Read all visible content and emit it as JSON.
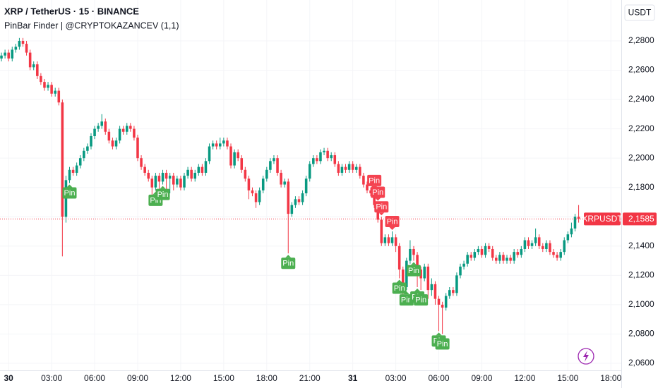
{
  "chart_data": {
    "type": "candlestick",
    "title": "XRP / TetherUS · 15 · BINANCE",
    "subtitle": "PinBar Finder | @CRYPTOKAZANCEV (1,1)",
    "currency": "USDT",
    "symbol_label": "XRPUSDT",
    "last_price": {
      "value": 2.1585,
      "label": "2,1585"
    },
    "up_color": "#089981",
    "down_color": "#f23645",
    "grid": true,
    "ylim": [
      2.0552,
      2.3079
    ],
    "yticks": [
      {
        "value": 2.28,
        "label": "2,2800"
      },
      {
        "value": 2.26,
        "label": "2,2600"
      },
      {
        "value": 2.24,
        "label": "2,2400"
      },
      {
        "value": 2.22,
        "label": "2,2200"
      },
      {
        "value": 2.2,
        "label": "2,2000"
      },
      {
        "value": 2.18,
        "label": "2,1800"
      },
      {
        "value": 2.16,
        "label": "2,1600"
      },
      {
        "value": 2.14,
        "label": "2,1400"
      },
      {
        "value": 2.12,
        "label": "2,1200"
      },
      {
        "value": 2.1,
        "label": "2,1000"
      },
      {
        "value": 2.08,
        "label": "2,0800"
      },
      {
        "value": 2.06,
        "label": "2,0600"
      }
    ],
    "xlim": [
      -0.4,
      172.9
    ],
    "xticks": [
      {
        "value": 2,
        "label": "30",
        "bold": true
      },
      {
        "value": 14,
        "label": "03:00"
      },
      {
        "value": 26,
        "label": "06:00"
      },
      {
        "value": 38,
        "label": "09:00"
      },
      {
        "value": 50,
        "label": "12:00"
      },
      {
        "value": 62,
        "label": "15:00"
      },
      {
        "value": 74,
        "label": "18:00"
      },
      {
        "value": 86,
        "label": "21:00"
      },
      {
        "value": 98,
        "label": "31",
        "bold": true
      },
      {
        "value": 110,
        "label": "03:00"
      },
      {
        "value": 122,
        "label": "06:00"
      },
      {
        "value": 134,
        "label": "09:00"
      },
      {
        "value": 146,
        "label": "12:00"
      },
      {
        "value": 158,
        "label": "15:00"
      },
      {
        "value": 170,
        "label": "18:00"
      }
    ],
    "candles": [
      [
        2.268,
        2.272,
        2.266,
        2.27
      ],
      [
        2.27,
        2.274,
        2.268,
        2.272
      ],
      [
        2.272,
        2.274,
        2.266,
        2.268
      ],
      [
        2.268,
        2.276,
        2.266,
        2.274
      ],
      [
        2.274,
        2.278,
        2.272,
        2.276
      ],
      [
        2.276,
        2.282,
        2.274,
        2.28
      ],
      [
        2.28,
        2.282,
        2.276,
        2.278
      ],
      [
        2.278,
        2.28,
        2.27,
        2.272
      ],
      [
        2.272,
        2.274,
        2.26,
        2.262
      ],
      [
        2.262,
        2.266,
        2.26,
        2.264
      ],
      [
        2.264,
        2.266,
        2.254,
        2.256
      ],
      [
        2.256,
        2.258,
        2.25,
        2.252
      ],
      [
        2.252,
        2.254,
        2.246,
        2.248
      ],
      [
        2.248,
        2.252,
        2.246,
        2.25
      ],
      [
        2.25,
        2.252,
        2.242,
        2.244
      ],
      [
        2.244,
        2.248,
        2.242,
        2.246
      ],
      [
        2.246,
        2.248,
        2.236,
        2.238
      ],
      [
        2.238,
        2.24,
        2.133,
        2.16
      ],
      [
        2.16,
        2.188,
        2.156,
        2.185
      ],
      [
        2.185,
        2.194,
        2.183,
        2.192
      ],
      [
        2.192,
        2.194,
        2.188,
        2.19
      ],
      [
        2.19,
        2.197,
        2.188,
        2.195
      ],
      [
        2.195,
        2.202,
        2.193,
        2.2
      ],
      [
        2.2,
        2.207,
        2.198,
        2.205
      ],
      [
        2.205,
        2.21,
        2.203,
        2.208
      ],
      [
        2.208,
        2.217,
        2.206,
        2.215
      ],
      [
        2.215,
        2.222,
        2.213,
        2.22
      ],
      [
        2.22,
        2.224,
        2.218,
        2.222
      ],
      [
        2.222,
        2.23,
        2.22,
        2.225
      ],
      [
        2.225,
        2.227,
        2.216,
        2.218
      ],
      [
        2.218,
        2.22,
        2.21,
        2.212
      ],
      [
        2.212,
        2.214,
        2.206,
        2.208
      ],
      [
        2.208,
        2.214,
        2.206,
        2.212
      ],
      [
        2.212,
        2.222,
        2.21,
        2.22
      ],
      [
        2.22,
        2.222,
        2.216,
        2.218
      ],
      [
        2.218,
        2.224,
        2.216,
        2.222
      ],
      [
        2.222,
        2.224,
        2.218,
        2.22
      ],
      [
        2.22,
        2.222,
        2.212,
        2.214
      ],
      [
        2.214,
        2.216,
        2.198,
        2.2
      ],
      [
        2.2,
        2.202,
        2.192,
        2.194
      ],
      [
        2.194,
        2.196,
        2.188,
        2.19
      ],
      [
        2.19,
        2.192,
        2.184,
        2.186
      ],
      [
        2.186,
        2.188,
        2.174,
        2.18
      ],
      [
        2.18,
        2.19,
        2.178,
        2.188
      ],
      [
        2.188,
        2.19,
        2.176,
        2.184
      ],
      [
        2.184,
        2.192,
        2.182,
        2.19
      ],
      [
        2.19,
        2.192,
        2.174,
        2.186
      ],
      [
        2.186,
        2.19,
        2.176,
        2.188
      ],
      [
        2.188,
        2.19,
        2.178,
        2.182
      ],
      [
        2.182,
        2.188,
        2.18,
        2.186
      ],
      [
        2.186,
        2.188,
        2.178,
        2.18
      ],
      [
        2.18,
        2.19,
        2.178,
        2.188
      ],
      [
        2.188,
        2.194,
        2.186,
        2.192
      ],
      [
        2.192,
        2.194,
        2.184,
        2.186
      ],
      [
        2.186,
        2.192,
        2.184,
        2.19
      ],
      [
        2.19,
        2.196,
        2.188,
        2.194
      ],
      [
        2.194,
        2.196,
        2.188,
        2.19
      ],
      [
        2.19,
        2.2,
        2.188,
        2.198
      ],
      [
        2.198,
        2.21,
        2.196,
        2.208
      ],
      [
        2.208,
        2.212,
        2.206,
        2.21
      ],
      [
        2.21,
        2.212,
        2.206,
        2.208
      ],
      [
        2.208,
        2.214,
        2.206,
        2.21
      ],
      [
        2.21,
        2.214,
        2.208,
        2.212
      ],
      [
        2.212,
        2.214,
        2.206,
        2.208
      ],
      [
        2.208,
        2.21,
        2.193,
        2.195
      ],
      [
        2.195,
        2.206,
        2.193,
        2.204
      ],
      [
        2.204,
        2.206,
        2.198,
        2.2
      ],
      [
        2.2,
        2.202,
        2.19,
        2.192
      ],
      [
        2.192,
        2.194,
        2.184,
        2.186
      ],
      [
        2.186,
        2.188,
        2.172,
        2.178
      ],
      [
        2.178,
        2.18,
        2.174,
        2.176
      ],
      [
        2.176,
        2.178,
        2.166,
        2.17
      ],
      [
        2.17,
        2.18,
        2.168,
        2.178
      ],
      [
        2.178,
        2.188,
        2.176,
        2.186
      ],
      [
        2.186,
        2.194,
        2.184,
        2.192
      ],
      [
        2.192,
        2.2,
        2.19,
        2.198
      ],
      [
        2.198,
        2.202,
        2.196,
        2.2
      ],
      [
        2.2,
        2.202,
        2.188,
        2.19
      ],
      [
        2.19,
        2.192,
        2.18,
        2.182
      ],
      [
        2.182,
        2.186,
        2.18,
        2.184
      ],
      [
        2.184,
        2.186,
        2.135,
        2.162
      ],
      [
        2.162,
        2.17,
        2.16,
        2.168
      ],
      [
        2.168,
        2.174,
        2.166,
        2.172
      ],
      [
        2.172,
        2.174,
        2.168,
        2.17
      ],
      [
        2.17,
        2.178,
        2.168,
        2.176
      ],
      [
        2.176,
        2.188,
        2.174,
        2.186
      ],
      [
        2.186,
        2.198,
        2.184,
        2.196
      ],
      [
        2.196,
        2.202,
        2.194,
        2.2
      ],
      [
        2.2,
        2.202,
        2.196,
        2.198
      ],
      [
        2.198,
        2.206,
        2.196,
        2.204
      ],
      [
        2.204,
        2.207,
        2.202,
        2.205
      ],
      [
        2.205,
        2.207,
        2.198,
        2.2
      ],
      [
        2.2,
        2.204,
        2.198,
        2.202
      ],
      [
        2.202,
        2.204,
        2.194,
        2.196
      ],
      [
        2.196,
        2.198,
        2.188,
        2.19
      ],
      [
        2.19,
        2.196,
        2.188,
        2.194
      ],
      [
        2.194,
        2.196,
        2.19,
        2.192
      ],
      [
        2.192,
        2.198,
        2.19,
        2.196
      ],
      [
        2.196,
        2.198,
        2.19,
        2.192
      ],
      [
        2.192,
        2.196,
        2.19,
        2.194
      ],
      [
        2.194,
        2.196,
        2.186,
        2.188
      ],
      [
        2.188,
        2.19,
        2.18,
        2.182
      ],
      [
        2.182,
        2.184,
        2.176,
        2.178
      ],
      [
        2.178,
        2.18,
        2.174,
        2.176
      ],
      [
        2.176,
        2.178,
        2.166,
        2.168
      ],
      [
        2.168,
        2.17,
        2.156,
        2.158
      ],
      [
        2.158,
        2.16,
        2.14,
        2.142
      ],
      [
        2.142,
        2.148,
        2.14,
        2.146
      ],
      [
        2.146,
        2.148,
        2.14,
        2.142
      ],
      [
        2.142,
        2.15,
        2.14,
        2.146
      ],
      [
        2.146,
        2.148,
        2.136,
        2.14
      ],
      [
        2.14,
        2.142,
        2.118,
        2.124
      ],
      [
        2.124,
        2.126,
        2.104,
        2.112
      ],
      [
        2.112,
        2.132,
        2.11,
        2.13
      ],
      [
        2.13,
        2.144,
        2.128,
        2.138
      ],
      [
        2.138,
        2.14,
        2.13,
        2.134
      ],
      [
        2.134,
        2.136,
        2.112,
        2.124
      ],
      [
        2.124,
        2.126,
        2.11,
        2.118
      ],
      [
        2.118,
        2.128,
        2.116,
        2.126
      ],
      [
        2.126,
        2.128,
        2.104,
        2.11
      ],
      [
        2.11,
        2.118,
        2.106,
        2.114
      ],
      [
        2.114,
        2.116,
        2.1,
        2.104
      ],
      [
        2.104,
        2.106,
        2.082,
        2.1
      ],
      [
        2.1,
        2.102,
        2.08,
        2.098
      ],
      [
        2.098,
        2.108,
        2.096,
        2.106
      ],
      [
        2.106,
        2.112,
        2.104,
        2.11
      ],
      [
        2.11,
        2.112,
        2.106,
        2.108
      ],
      [
        2.108,
        2.122,
        2.106,
        2.12
      ],
      [
        2.12,
        2.128,
        2.118,
        2.126
      ],
      [
        2.126,
        2.13,
        2.124,
        2.128
      ],
      [
        2.128,
        2.136,
        2.126,
        2.134
      ],
      [
        2.134,
        2.136,
        2.13,
        2.132
      ],
      [
        2.132,
        2.138,
        2.13,
        2.136
      ],
      [
        2.136,
        2.14,
        2.134,
        2.138
      ],
      [
        2.138,
        2.14,
        2.132,
        2.134
      ],
      [
        2.134,
        2.142,
        2.132,
        2.14
      ],
      [
        2.14,
        2.142,
        2.136,
        2.138
      ],
      [
        2.138,
        2.14,
        2.13,
        2.132
      ],
      [
        2.132,
        2.134,
        2.128,
        2.13
      ],
      [
        2.13,
        2.136,
        2.128,
        2.134
      ],
      [
        2.134,
        2.136,
        2.128,
        2.13
      ],
      [
        2.13,
        2.134,
        2.128,
        2.132
      ],
      [
        2.132,
        2.134,
        2.128,
        2.13
      ],
      [
        2.13,
        2.138,
        2.128,
        2.136
      ],
      [
        2.136,
        2.138,
        2.132,
        2.134
      ],
      [
        2.134,
        2.14,
        2.132,
        2.138
      ],
      [
        2.138,
        2.146,
        2.136,
        2.144
      ],
      [
        2.144,
        2.146,
        2.138,
        2.14
      ],
      [
        2.14,
        2.144,
        2.138,
        2.142
      ],
      [
        2.142,
        2.152,
        2.14,
        2.146
      ],
      [
        2.146,
        2.148,
        2.138,
        2.14
      ],
      [
        2.14,
        2.142,
        2.136,
        2.138
      ],
      [
        2.138,
        2.144,
        2.136,
        2.142
      ],
      [
        2.142,
        2.144,
        2.134,
        2.136
      ],
      [
        2.136,
        2.138,
        2.132,
        2.134
      ],
      [
        2.134,
        2.136,
        2.13,
        2.132
      ],
      [
        2.132,
        2.138,
        2.13,
        2.136
      ],
      [
        2.136,
        2.146,
        2.134,
        2.144
      ],
      [
        2.144,
        2.15,
        2.142,
        2.148
      ],
      [
        2.148,
        2.156,
        2.146,
        2.152
      ],
      [
        2.152,
        2.162,
        2.15,
        2.16
      ],
      [
        2.16,
        2.168,
        2.156,
        2.1585
      ]
    ],
    "pins": [
      {
        "candle": 19,
        "text": "Pin",
        "side": "below",
        "color": "#4caf50"
      },
      {
        "candle": 43,
        "text": "Pin",
        "side": "below",
        "color": "#4caf50"
      },
      {
        "candle": 45,
        "text": "Pin",
        "side": "below",
        "color": "#4caf50"
      },
      {
        "candle": 80,
        "text": "Pin",
        "side": "below",
        "color": "#4caf50"
      },
      {
        "candle": 104,
        "text": "Pin",
        "side": "above",
        "color": "#f44350"
      },
      {
        "candle": 105,
        "text": "Pin",
        "side": "above",
        "color": "#f44350"
      },
      {
        "candle": 106,
        "text": "Pin",
        "side": "above",
        "color": "#f44350"
      },
      {
        "candle": 109,
        "text": "Pin",
        "side": "above",
        "color": "#f44350"
      },
      {
        "candle": 111,
        "text": "Pin",
        "side": "below",
        "color": "#4caf50"
      },
      {
        "candle": 113,
        "text": "Pin",
        "side": "below",
        "color": "#4caf50"
      },
      {
        "candle": 115,
        "text": "Pin",
        "side": "below",
        "color": "#4caf50"
      },
      {
        "candle": 116,
        "text": "Pin",
        "side": "below",
        "color": "#4caf50"
      },
      {
        "candle": 117,
        "text": "Pin",
        "side": "below",
        "color": "#4caf50"
      },
      {
        "candle": 122,
        "text": "Pin",
        "side": "below",
        "color": "#4caf50"
      },
      {
        "candle": 123,
        "text": "Pin",
        "side": "below",
        "color": "#4caf50"
      }
    ]
  }
}
